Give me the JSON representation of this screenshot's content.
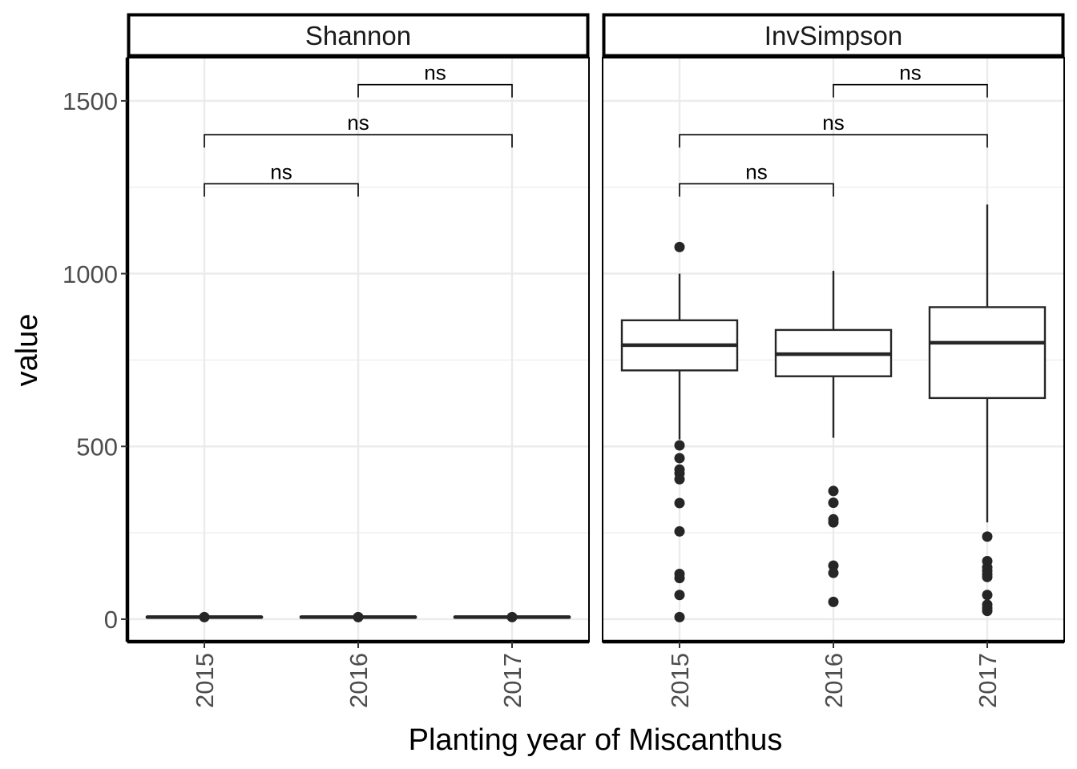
{
  "chart_data": {
    "type": "box",
    "xlabel": "Planting year of Miscanthus",
    "ylabel": "value",
    "ylim": [
      -65,
      1625
    ],
    "y_ticks": [
      0,
      500,
      1000,
      1500
    ],
    "categories": [
      "2015",
      "2016",
      "2017"
    ],
    "grid": true,
    "colors": {
      "box_line": "#262626",
      "grid": "#ebebeb",
      "text": "#4d4d4d"
    },
    "panels": [
      {
        "title": "Shannon",
        "boxes": [
          {
            "category": "2015",
            "whisker_low": 4,
            "q1": 5,
            "median": 6,
            "q3": 7,
            "whisker_high": 8,
            "outliers": []
          },
          {
            "category": "2016",
            "whisker_low": 4,
            "q1": 5,
            "median": 6,
            "q3": 7,
            "whisker_high": 8,
            "outliers": []
          },
          {
            "category": "2017",
            "whisker_low": 4,
            "q1": 5,
            "median": 6,
            "q3": 7,
            "whisker_high": 8,
            "outliers": []
          }
        ],
        "comparisons": [
          {
            "from": "2015",
            "to": "2016",
            "y": 1260,
            "label": "ns"
          },
          {
            "from": "2015",
            "to": "2017",
            "y": 1402,
            "label": "ns"
          },
          {
            "from": "2016",
            "to": "2017",
            "y": 1547,
            "label": "ns"
          }
        ]
      },
      {
        "title": "InvSimpson",
        "boxes": [
          {
            "category": "2015",
            "whisker_low": 520,
            "q1": 720,
            "median": 793,
            "q3": 865,
            "whisker_high": 1000,
            "outliers": [
              1077,
              503,
              466,
              433,
              422,
              405,
              336,
              254,
              131,
              119,
              70,
              6
            ]
          },
          {
            "category": "2016",
            "whisker_low": 525,
            "q1": 703,
            "median": 767,
            "q3": 837,
            "whisker_high": 1008,
            "outliers": [
              371,
              337,
              289,
              280,
              155,
              134,
              50
            ]
          },
          {
            "category": "2017",
            "whisker_low": 280,
            "q1": 640,
            "median": 800,
            "q3": 903,
            "whisker_high": 1200,
            "outliers": [
              239,
              168,
              150,
              140,
              130,
              122,
              70,
              42,
              32,
              24
            ]
          }
        ],
        "comparisons": [
          {
            "from": "2015",
            "to": "2016",
            "y": 1260,
            "label": "ns"
          },
          {
            "from": "2015",
            "to": "2017",
            "y": 1402,
            "label": "ns"
          },
          {
            "from": "2016",
            "to": "2017",
            "y": 1547,
            "label": "ns"
          }
        ]
      }
    ]
  }
}
